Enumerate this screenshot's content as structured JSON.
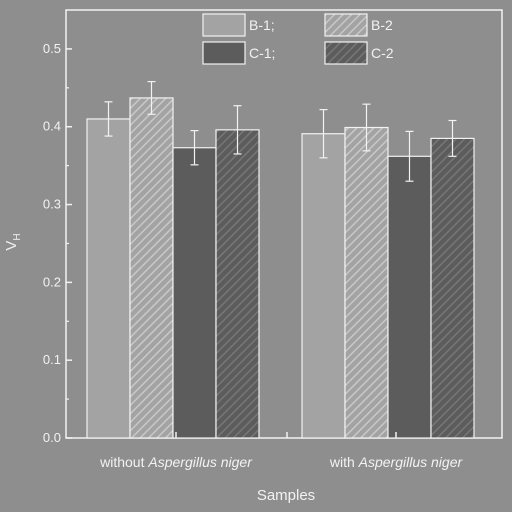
{
  "chart_data": {
    "type": "bar",
    "xlabel": "Samples",
    "ylabel": "V",
    "ylabel_sub": "H",
    "ylim": [
      0,
      0.55
    ],
    "yticks": [
      "0.0",
      "0.1",
      "0.2",
      "0.3",
      "0.4",
      "0.5"
    ],
    "categories": [
      {
        "prefix": "without ",
        "italic": "Aspergillus niger"
      },
      {
        "prefix": "with ",
        "italic": "Aspergillus niger"
      }
    ],
    "series": [
      {
        "name": "B-1;",
        "values": [
          0.41,
          0.391
        ],
        "errors": [
          0.022,
          0.031
        ],
        "fill": "#a3a3a3",
        "hatch": false
      },
      {
        "name": "B-2",
        "values": [
          0.437,
          0.399
        ],
        "errors": [
          0.021,
          0.03
        ],
        "fill": "#a3a3a3",
        "hatch": true
      },
      {
        "name": "C-1;",
        "values": [
          0.373,
          0.362
        ],
        "errors": [
          0.022,
          0.032
        ],
        "fill": "#5c5c5c",
        "hatch": false
      },
      {
        "name": "C-2",
        "values": [
          0.396,
          0.385
        ],
        "errors": [
          0.031,
          0.023
        ],
        "fill": "#5c5c5c",
        "hatch": true
      }
    ],
    "legend_position": "top-center",
    "grid": false
  },
  "colors": {
    "background": "#8e8e8e",
    "axis": "#f2f2f2",
    "hatch_light": "#c8c8c8",
    "hatch_dark": "#777777"
  }
}
